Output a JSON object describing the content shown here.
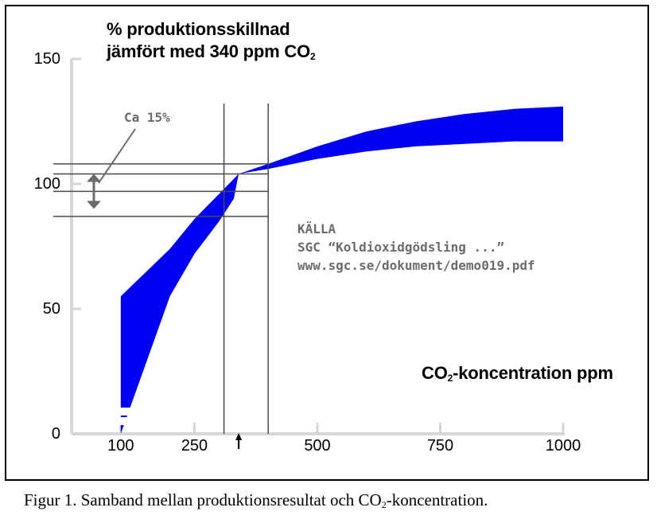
{
  "chart_data": {
    "type": "area",
    "title_line1": "% produktionsskillnad",
    "title_line2_prefix": "jämfört med 340 ppm CO",
    "title_line2_sub": "2",
    "xlabel_prefix": "CO",
    "xlabel_sub": "2",
    "xlabel_suffix": "-koncentration ppm",
    "x_ticks": [
      "100",
      "250",
      "500",
      "750",
      "1000"
    ],
    "y_ticks": [
      "150",
      "100",
      "50",
      "0"
    ],
    "xlim": [
      0,
      1000
    ],
    "ylim": [
      0,
      150
    ],
    "band_color": "#0000f2",
    "series": [
      {
        "values_x": [
          100,
          200,
          250,
          300,
          330,
          340,
          400,
          500,
          600,
          700,
          800,
          900,
          1000
        ],
        "upper": [
          55,
          74,
          86,
          96,
          102,
          104,
          108,
          115,
          121,
          125,
          128,
          130,
          131
        ],
        "lower": [
          0,
          55,
          72,
          85,
          94,
          104,
          106,
          110,
          113,
          115,
          116,
          117,
          117
        ]
      }
    ],
    "reference_lines_x": [
      310,
      400
    ],
    "reference_lines_y": [
      87,
      97,
      104,
      108
    ],
    "bracket": {
      "label": "Ca 15%",
      "y_top": 104,
      "y_bottom": 90
    },
    "source_lines": [
      "KÄLLA",
      "SGC “Koldioxidgödsling ...”",
      "www.sgc.se/dokument/demo019.pdf"
    ],
    "x_marker": {
      "symbol": "↑",
      "x": 340
    }
  },
  "caption": {
    "prefix": "Figur 1. Samband mellan produktionsresultat och CO",
    "sub": "2",
    "suffix": "-koncentration."
  }
}
